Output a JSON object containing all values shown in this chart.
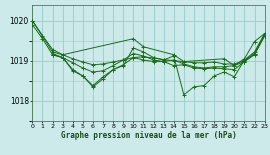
{
  "title": "Graphe pression niveau de la mer (hPa)",
  "bg_color": "#cceaea",
  "grid_color": "#99cccc",
  "line_color": "#1a6b1a",
  "ylim": [
    1017.5,
    1020.4
  ],
  "xlim": [
    0,
    23
  ],
  "yticks": [
    1018,
    1019,
    1020
  ],
  "xticks": [
    0,
    1,
    2,
    3,
    4,
    5,
    6,
    7,
    8,
    9,
    10,
    11,
    12,
    13,
    14,
    15,
    16,
    17,
    18,
    19,
    20,
    21,
    22,
    23
  ],
  "series": [
    {
      "x": [
        0,
        1,
        2,
        3,
        4,
        5,
        6,
        7,
        8,
        9,
        10,
        11,
        12,
        13,
        14,
        15,
        16,
        17,
        18,
        19,
        20,
        21,
        22,
        23
      ],
      "y": [
        1020.0,
        1019.63,
        1019.28,
        1019.15,
        1019.05,
        1018.97,
        1018.9,
        1018.92,
        1018.97,
        1019.02,
        1019.08,
        1019.1,
        1019.07,
        1019.03,
        1019.0,
        1018.98,
        1018.95,
        1018.95,
        1018.97,
        1018.92,
        1018.92,
        1019.0,
        1019.18,
        1019.62
      ]
    },
    {
      "x": [
        2,
        3,
        4,
        5,
        6,
        7,
        8,
        9,
        10,
        11,
        12,
        13,
        14,
        15,
        16,
        17,
        18,
        19,
        20,
        21,
        22,
        23
      ],
      "y": [
        1019.18,
        1019.08,
        1018.78,
        1018.62,
        1018.35,
        1018.55,
        1018.78,
        1018.88,
        1019.32,
        1019.22,
        1019.08,
        1019.02,
        1019.12,
        1018.15,
        1018.35,
        1018.38,
        1018.62,
        1018.72,
        1018.6,
        1019.02,
        1019.22,
        1019.68
      ]
    },
    {
      "x": [
        2,
        3,
        4,
        5,
        6,
        7,
        8,
        9,
        10,
        11,
        12,
        13,
        14,
        15,
        16,
        17,
        18,
        19,
        20,
        21,
        22,
        23
      ],
      "y": [
        1019.15,
        1019.08,
        1018.95,
        1018.82,
        1018.72,
        1018.75,
        1018.88,
        1019.02,
        1019.18,
        1019.12,
        1019.02,
        1018.98,
        1019.02,
        1018.92,
        1018.85,
        1018.82,
        1018.85,
        1018.85,
        1018.88,
        1018.98,
        1019.15,
        1019.62
      ]
    },
    {
      "x": [
        0,
        1,
        2,
        3,
        4,
        5,
        6,
        7,
        8,
        9,
        10,
        11,
        12,
        13,
        14,
        15,
        16,
        17,
        18,
        19,
        20,
        21,
        22,
        23
      ],
      "y": [
        1019.9,
        1019.55,
        1019.15,
        1019.08,
        1018.75,
        1018.62,
        1018.38,
        1018.6,
        1018.78,
        1018.9,
        1019.08,
        1019.02,
        1018.98,
        1018.98,
        1018.88,
        1018.9,
        1018.82,
        1018.8,
        1018.82,
        1018.8,
        1018.78,
        1018.98,
        1019.18,
        1019.65
      ]
    },
    {
      "x": [
        0,
        2,
        3,
        10,
        11,
        14,
        15,
        19,
        20,
        21,
        22,
        23
      ],
      "y": [
        1020.0,
        1019.22,
        1019.15,
        1019.55,
        1019.35,
        1019.15,
        1018.98,
        1019.05,
        1018.88,
        1019.05,
        1019.48,
        1019.68
      ]
    }
  ]
}
